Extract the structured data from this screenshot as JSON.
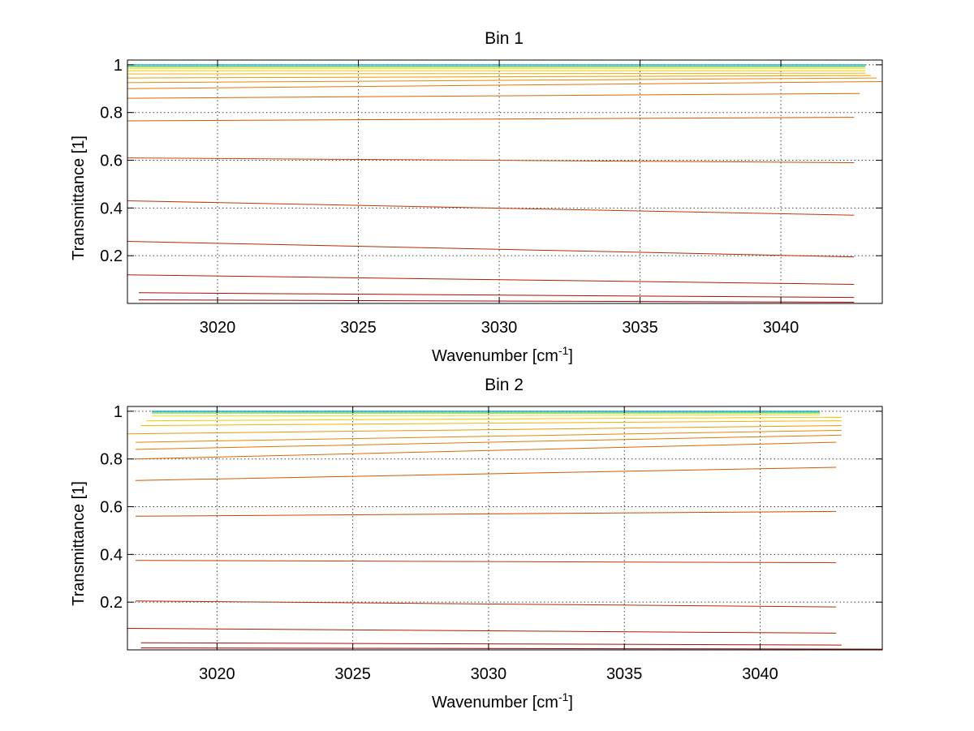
{
  "chart_data": [
    {
      "type": "line",
      "title": "Bin 1",
      "xlabel": "Wavenumber [cm",
      "xlabel_sup": "-1",
      "xlabel_end": "]",
      "ylabel": "Transmittance [1]",
      "xlim": [
        3016.8,
        3043.6
      ],
      "ylim": [
        0.0,
        1.02
      ],
      "xticks": [
        3020,
        3025,
        3030,
        3035,
        3040
      ],
      "yticks": [
        0.2,
        0.4,
        0.6,
        0.8,
        1
      ],
      "grid": true,
      "series": [
        {
          "x": [
            3016.8,
            3043.0
          ],
          "y": [
            1.0,
            1.0
          ],
          "color": "#0090d0"
        },
        {
          "x": [
            3016.8,
            3043.0
          ],
          "y": [
            0.995,
            0.995
          ],
          "color": "#30c8a0"
        },
        {
          "x": [
            3016.8,
            3043.0
          ],
          "y": [
            0.99,
            0.99
          ],
          "color": "#a0e040"
        },
        {
          "x": [
            3016.8,
            3043.0
          ],
          "y": [
            0.985,
            0.985
          ],
          "color": "#e8e020"
        },
        {
          "x": [
            3016.8,
            3043.0
          ],
          "y": [
            0.975,
            0.975
          ],
          "color": "#f8c800"
        },
        {
          "x": [
            3016.8,
            3043.0
          ],
          "y": [
            0.962,
            0.965
          ],
          "color": "#f8b000"
        },
        {
          "x": [
            3016.8,
            3043.2
          ],
          "y": [
            0.945,
            0.955
          ],
          "color": "#f09800"
        },
        {
          "x": [
            3016.8,
            3043.4
          ],
          "y": [
            0.925,
            0.945
          ],
          "color": "#e88800"
        },
        {
          "x": [
            3016.8,
            3043.6
          ],
          "y": [
            0.9,
            0.93
          ],
          "color": "#e07800"
        },
        {
          "x": [
            3016.8,
            3042.8
          ],
          "y": [
            0.86,
            0.88
          ],
          "color": "#d86800"
        },
        {
          "x": [
            3016.8,
            3042.6
          ],
          "y": [
            0.765,
            0.78
          ],
          "color": "#d05800"
        },
        {
          "x": [
            3016.8,
            3042.6
          ],
          "y": [
            0.61,
            0.59
          ],
          "color": "#c84a00"
        },
        {
          "x": [
            3016.8,
            3042.6
          ],
          "y": [
            0.43,
            0.37
          ],
          "color": "#c03a00"
        },
        {
          "x": [
            3016.8,
            3042.6
          ],
          "y": [
            0.26,
            0.195
          ],
          "color": "#b82a00"
        },
        {
          "x": [
            3016.8,
            3042.6
          ],
          "y": [
            0.12,
            0.08
          ],
          "color": "#b01c00"
        },
        {
          "x": [
            3017.2,
            3042.6
          ],
          "y": [
            0.045,
            0.025
          ],
          "color": "#a81000"
        },
        {
          "x": [
            3017.2,
            3042.6
          ],
          "y": [
            0.015,
            0.005
          ],
          "color": "#a00800"
        }
      ]
    },
    {
      "type": "line",
      "title": "Bin 2",
      "xlabel": "Wavenumber [cm",
      "xlabel_sup": "-1",
      "xlabel_end": "]",
      "ylabel": "Transmittance [1]",
      "xlim": [
        3016.7,
        3044.5
      ],
      "ylim": [
        0.0,
        1.02
      ],
      "xticks": [
        3020,
        3025,
        3030,
        3035,
        3040
      ],
      "yticks": [
        0.2,
        0.4,
        0.6,
        0.8,
        1
      ],
      "grid": true,
      "series": [
        {
          "x": [
            3017.6,
            3042.2
          ],
          "y": [
            1.0,
            1.0
          ],
          "color": "#0090d0"
        },
        {
          "x": [
            3017.6,
            3042.2
          ],
          "y": [
            0.996,
            0.996
          ],
          "color": "#30c8a0"
        },
        {
          "x": [
            3017.6,
            3042.2
          ],
          "y": [
            0.99,
            0.992
          ],
          "color": "#a0e040"
        },
        {
          "x": [
            3017.6,
            3042.2
          ],
          "y": [
            0.98,
            0.985
          ],
          "color": "#e8e020"
        },
        {
          "x": [
            3017.4,
            3043.0
          ],
          "y": [
            0.96,
            0.975
          ],
          "color": "#f8c800"
        },
        {
          "x": [
            3017.2,
            3043.0
          ],
          "y": [
            0.94,
            0.96
          ],
          "color": "#f8b000"
        },
        {
          "x": [
            3016.7,
            3043.0
          ],
          "y": [
            0.905,
            0.94
          ],
          "color": "#f09800"
        },
        {
          "x": [
            3017.0,
            3043.0
          ],
          "y": [
            0.87,
            0.92
          ],
          "color": "#e88800"
        },
        {
          "x": [
            3017.0,
            3043.0
          ],
          "y": [
            0.84,
            0.9
          ],
          "color": "#e07800"
        },
        {
          "x": [
            3017.0,
            3042.8
          ],
          "y": [
            0.8,
            0.87
          ],
          "color": "#d86800"
        },
        {
          "x": [
            3017.0,
            3042.8
          ],
          "y": [
            0.71,
            0.765
          ],
          "color": "#d05800"
        },
        {
          "x": [
            3017.0,
            3042.8
          ],
          "y": [
            0.56,
            0.58
          ],
          "color": "#c84a00"
        },
        {
          "x": [
            3017.0,
            3042.8
          ],
          "y": [
            0.375,
            0.365
          ],
          "color": "#c03a00"
        },
        {
          "x": [
            3017.0,
            3042.8
          ],
          "y": [
            0.205,
            0.18
          ],
          "color": "#b82a00"
        },
        {
          "x": [
            3016.7,
            3042.8
          ],
          "y": [
            0.09,
            0.07
          ],
          "color": "#b01c00"
        },
        {
          "x": [
            3017.2,
            3043.0
          ],
          "y": [
            0.03,
            0.02
          ],
          "color": "#a81000"
        },
        {
          "x": [
            3017.2,
            3044.5
          ],
          "y": [
            0.008,
            0.003
          ],
          "color": "#980000"
        }
      ]
    }
  ]
}
